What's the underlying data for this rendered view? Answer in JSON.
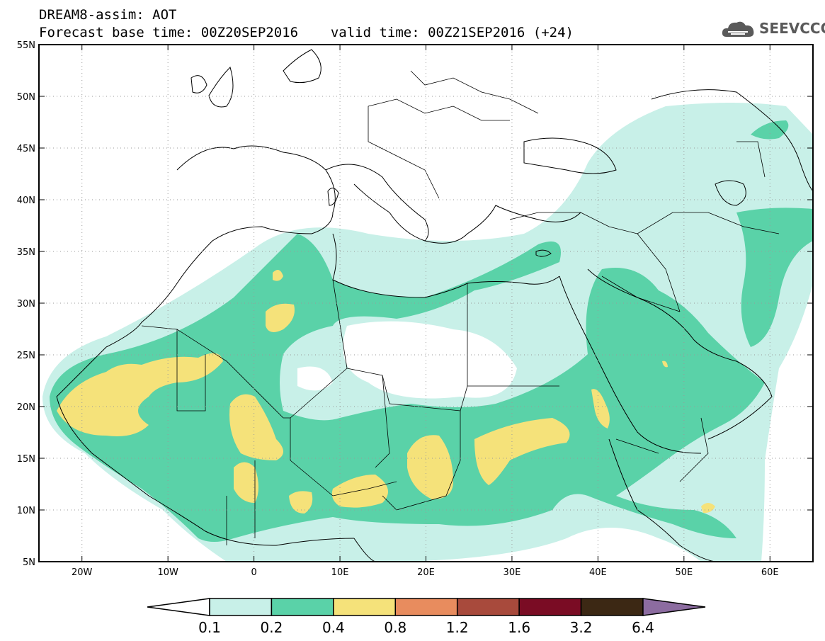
{
  "header": {
    "title": "DREAM8-assim: AOT",
    "base_time": "Forecast base time: 00Z20SEP2016",
    "valid_time": "valid time: 00Z21SEP2016 (+24)"
  },
  "logo": {
    "text": "SEEVCCC",
    "icon": "cloud-logo-icon"
  },
  "map": {
    "lat_labels": [
      "55N",
      "50N",
      "45N",
      "40N",
      "35N",
      "30N",
      "25N",
      "20N",
      "15N",
      "10N",
      "5N"
    ],
    "lon_labels": [
      "20W",
      "10W",
      "0",
      "10E",
      "20E",
      "30E",
      "40E",
      "50E",
      "60E"
    ],
    "lon_range": [
      -25,
      65
    ],
    "lat_range": [
      5,
      55
    ],
    "grid": "dotted"
  },
  "colorbar": {
    "colors": [
      "#ffffff",
      "#c8f0e8",
      "#5ad2a8",
      "#f5e27a",
      "#e88c5e",
      "#a84a3c",
      "#7a0c24",
      "#3c2814",
      "#8c6ca0"
    ],
    "labels": [
      "0.1",
      "0.2",
      "0.4",
      "0.8",
      "1.2",
      "1.6",
      "3.2",
      "6.4"
    ]
  }
}
